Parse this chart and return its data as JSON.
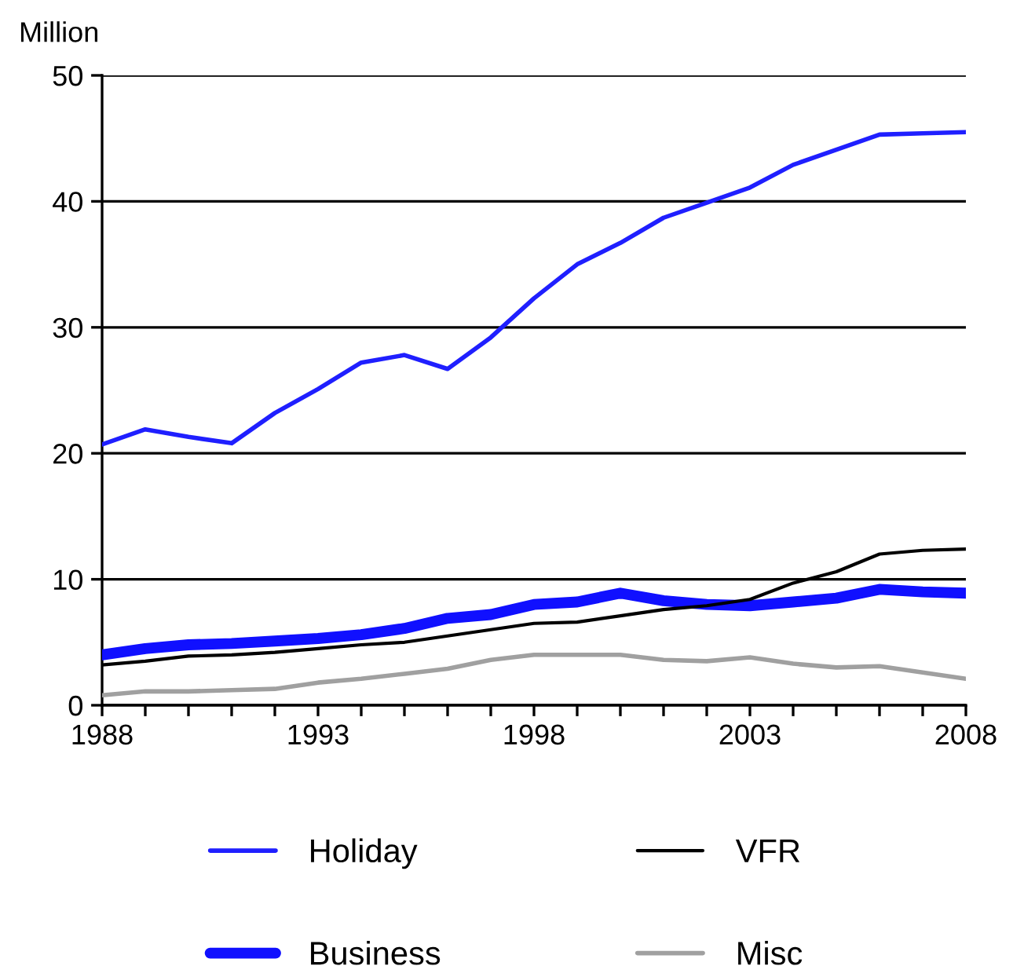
{
  "chart_data": {
    "type": "line",
    "ylabel": "Million",
    "x": [
      1988,
      1989,
      1990,
      1991,
      1992,
      1993,
      1994,
      1995,
      1996,
      1997,
      1998,
      1999,
      2000,
      2001,
      2002,
      2003,
      2004,
      2005,
      2006,
      2007,
      2008
    ],
    "series": [
      {
        "name": "Holiday",
        "color": "#1f1fff",
        "values": [
          20.7,
          21.9,
          21.3,
          20.8,
          23.2,
          25.1,
          27.2,
          27.8,
          26.7,
          29.2,
          32.3,
          35.0,
          36.7,
          38.7,
          39.9,
          41.1,
          42.9,
          44.1,
          45.3,
          45.4,
          45.5
        ]
      },
      {
        "name": "VFR",
        "color": "#000000",
        "values": [
          3.2,
          3.5,
          3.9,
          4.0,
          4.2,
          4.5,
          4.8,
          5.0,
          5.5,
          6.0,
          6.5,
          6.6,
          7.1,
          7.6,
          7.9,
          8.4,
          9.7,
          10.6,
          12.0,
          12.3,
          12.4
        ]
      },
      {
        "name": "Business",
        "color": "#1010ff",
        "values": [
          4.0,
          4.5,
          4.8,
          4.9,
          5.1,
          5.3,
          5.6,
          6.1,
          6.9,
          7.2,
          8.0,
          8.2,
          8.9,
          8.3,
          8.0,
          7.9,
          8.2,
          8.5,
          9.2,
          9.0,
          8.9
        ]
      },
      {
        "name": "Misc",
        "color": "#a0a0a0",
        "values": [
          0.8,
          1.1,
          1.1,
          1.2,
          1.3,
          1.8,
          2.1,
          2.5,
          2.9,
          3.6,
          4.0,
          4.0,
          4.0,
          3.6,
          3.5,
          3.8,
          3.3,
          3.0,
          3.1,
          2.6,
          2.1
        ]
      }
    ],
    "xlim": [
      1988,
      2008
    ],
    "xticks": [
      1988,
      {
        "value": 1989,
        "label": null
      },
      {
        "value": 1990,
        "label": null
      },
      {
        "value": 1991,
        "label": null
      },
      {
        "value": 1992,
        "label": null
      },
      1993,
      {
        "value": 1994,
        "label": null
      },
      {
        "value": 1995,
        "label": null
      },
      {
        "value": 1996,
        "label": null
      },
      {
        "value": 1997,
        "label": null
      },
      1998,
      {
        "value": 1999,
        "label": null
      },
      {
        "value": 2000,
        "label": null
      },
      {
        "value": 2001,
        "label": null
      },
      {
        "value": 2002,
        "label": null
      },
      2003,
      {
        "value": 2004,
        "label": null
      },
      {
        "value": 2005,
        "label": null
      },
      {
        "value": 2006,
        "label": null
      },
      {
        "value": 2007,
        "label": null
      },
      2008
    ],
    "ylim": [
      0,
      50
    ],
    "yticks": [
      0,
      10,
      20,
      30,
      40,
      50
    ],
    "grid": "y",
    "legend": "bottom",
    "marker": "none",
    "line_style": "solid"
  }
}
